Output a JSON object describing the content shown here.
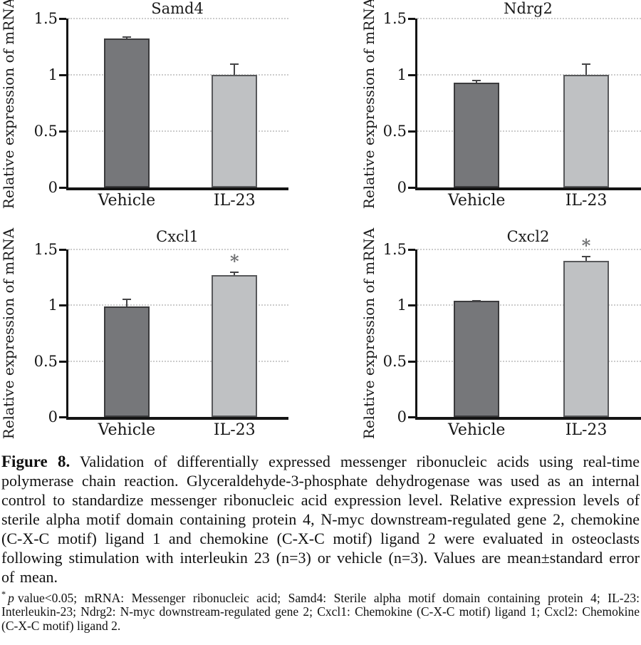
{
  "figure": {
    "caption_label": "Figure 8.",
    "caption_text": " Validation of differentially expressed messenger ribonucleic acids using real-time polymerase chain reaction. Glyceraldehyde-3-phosphate dehydrogenase was used as an internal control to standardize messenger ribonucleic acid expression level. Relative expression levels of sterile alpha motif domain containing protein 4, N-myc downstream-regulated gene 2, chemokine (C-X-C motif) ligand 1 and chemokine (C-X-C motif) ligand 2 were evaluated in osteoclasts following stimulation with interleukin 23 (n=3) or vehicle (n=3). Values are mean±standard error of mean.",
    "footnote_marker": "*",
    "footnote_p_italic": "p",
    "footnote_text": "value<0.05; mRNA: Messenger ribonucleic acid; Samd4: Sterile alpha motif domain containing protein 4; IL-23: Interleukin-23; Ndrg2: N-myc downstream-regulated gene 2; Cxcl1: Chemokine (C-X-C motif) ligand 1; Cxcl2: Chemokine (C-X-C motif) ligand 2."
  },
  "style": {
    "bar_fills": [
      "#76777a",
      "#bfc1c3"
    ],
    "bar_borders": [
      "#3b3b3d",
      "#58595b"
    ],
    "axis_color": "#141414",
    "gridline_color": "#cccccc",
    "error_bar_color": "#454547",
    "asterisk_color": "#6f7072"
  },
  "chart_data": [
    {
      "type": "bar",
      "title": "Samd4",
      "ylabel": "Relative expression of mRNA",
      "xlabel": "",
      "categories": [
        "Vehicle",
        "IL-23"
      ],
      "values": [
        1.32,
        1.0
      ],
      "errors": [
        0.02,
        0.1
      ],
      "significance": [
        "",
        ""
      ],
      "yticks": [
        0,
        0.5,
        1,
        1.5
      ],
      "ylim": [
        0,
        1.5
      ],
      "grid": "dotted-horizontal",
      "legend": "none"
    },
    {
      "type": "bar",
      "title": "Ndrg2",
      "ylabel": "Relative expression of mRNA",
      "xlabel": "",
      "categories": [
        "Vehicle",
        "IL-23"
      ],
      "values": [
        0.93,
        1.0
      ],
      "errors": [
        0.025,
        0.1
      ],
      "significance": [
        "",
        ""
      ],
      "yticks": [
        0,
        0.5,
        1,
        1.5
      ],
      "ylim": [
        0,
        1.5
      ],
      "grid": "dotted-horizontal",
      "legend": "none"
    },
    {
      "type": "bar",
      "title": "Cxcl1",
      "ylabel": "Relative expression of mRNA",
      "xlabel": "",
      "categories": [
        "Vehicle",
        "IL-23"
      ],
      "values": [
        0.99,
        1.27
      ],
      "errors": [
        0.07,
        0.03
      ],
      "significance": [
        "",
        "*"
      ],
      "yticks": [
        0,
        0.5,
        1,
        1.5
      ],
      "ylim": [
        0,
        1.5
      ],
      "grid": "dotted-horizontal",
      "legend": "none"
    },
    {
      "type": "bar",
      "title": "Cxcl2",
      "ylabel": "Relative expression of mRNA",
      "xlabel": "",
      "categories": [
        "Vehicle",
        "IL-23"
      ],
      "values": [
        1.04,
        1.4
      ],
      "errors": [
        0.01,
        0.045
      ],
      "significance": [
        "",
        "*"
      ],
      "yticks": [
        0,
        0.5,
        1,
        1.5
      ],
      "ylim": [
        0,
        1.5
      ],
      "grid": "dotted-horizontal",
      "legend": "none"
    }
  ]
}
